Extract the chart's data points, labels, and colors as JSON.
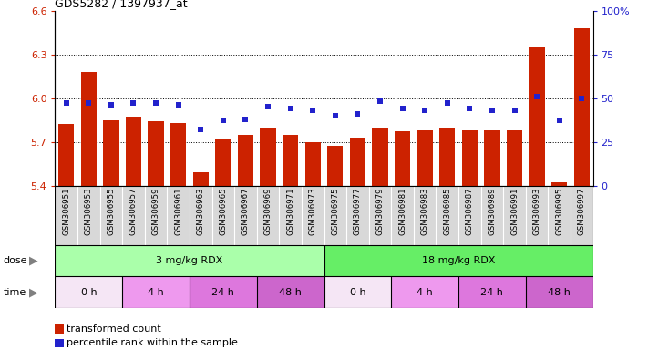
{
  "title": "GDS5282 / 1397937_at",
  "samples": [
    "GSM306951",
    "GSM306953",
    "GSM306955",
    "GSM306957",
    "GSM306959",
    "GSM306961",
    "GSM306963",
    "GSM306965",
    "GSM306967",
    "GSM306969",
    "GSM306971",
    "GSM306973",
    "GSM306975",
    "GSM306977",
    "GSM306979",
    "GSM306981",
    "GSM306983",
    "GSM306985",
    "GSM306987",
    "GSM306989",
    "GSM306991",
    "GSM306993",
    "GSM306995",
    "GSM306997"
  ],
  "bar_values": [
    5.82,
    6.18,
    5.85,
    5.87,
    5.84,
    5.83,
    5.49,
    5.72,
    5.75,
    5.8,
    5.75,
    5.7,
    5.67,
    5.73,
    5.8,
    5.77,
    5.78,
    5.8,
    5.78,
    5.78,
    5.78,
    6.35,
    5.42,
    6.48
  ],
  "percentile_values": [
    47,
    47,
    46,
    47,
    47,
    46,
    32,
    37,
    38,
    45,
    44,
    43,
    40,
    41,
    48,
    44,
    43,
    47,
    44,
    43,
    43,
    51,
    37,
    50
  ],
  "bar_color": "#cc2200",
  "percentile_color": "#2222cc",
  "ylim_left": [
    5.4,
    6.6
  ],
  "ylim_right": [
    0,
    100
  ],
  "yticks_left": [
    5.4,
    5.7,
    6.0,
    6.3,
    6.6
  ],
  "yticks_right": [
    0,
    25,
    50,
    75,
    100
  ],
  "ytick_labels_right": [
    "0",
    "25",
    "50",
    "75",
    "100%"
  ],
  "grid_lines": [
    5.7,
    6.0,
    6.3
  ],
  "dose_groups": [
    {
      "label": "3 mg/kg RDX",
      "start": 0,
      "end": 12,
      "color": "#aaffaa"
    },
    {
      "label": "18 mg/kg RDX",
      "start": 12,
      "end": 24,
      "color": "#66ee66"
    }
  ],
  "time_groups": [
    {
      "label": "0 h",
      "start": 0,
      "end": 3,
      "color": "#f5e6f5"
    },
    {
      "label": "4 h",
      "start": 3,
      "end": 6,
      "color": "#ee99ee"
    },
    {
      "label": "24 h",
      "start": 6,
      "end": 9,
      "color": "#dd77dd"
    },
    {
      "label": "48 h",
      "start": 9,
      "end": 12,
      "color": "#cc66cc"
    },
    {
      "label": "0 h",
      "start": 12,
      "end": 15,
      "color": "#f5e6f5"
    },
    {
      "label": "4 h",
      "start": 15,
      "end": 18,
      "color": "#ee99ee"
    },
    {
      "label": "24 h",
      "start": 18,
      "end": 21,
      "color": "#dd77dd"
    },
    {
      "label": "48 h",
      "start": 21,
      "end": 24,
      "color": "#cc66cc"
    }
  ],
  "legend_items": [
    {
      "label": "transformed count",
      "color": "#cc2200"
    },
    {
      "label": "percentile rank within the sample",
      "color": "#2222cc"
    }
  ],
  "background_color": "#ffffff",
  "axis_label_color": "#cc2200",
  "right_axis_color": "#2222cc",
  "xtick_bg": "#d8d8d8"
}
